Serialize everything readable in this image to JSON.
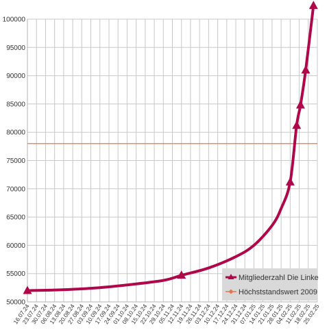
{
  "chart_data": {
    "type": "line",
    "title": "",
    "xlabel": "",
    "ylabel": "",
    "ylim": [
      50000,
      100000
    ],
    "y_ticks": [
      50000,
      55000,
      60000,
      65000,
      70000,
      75000,
      80000,
      85000,
      90000,
      95000,
      100000
    ],
    "x_tick_labels": [
      "16.07.24",
      "23.07.24",
      "30.07.24",
      "06.08.24",
      "13.08.24",
      "20.08.24",
      "27.08.24",
      "03.09.24",
      "10.09.24",
      "17.09.24",
      "24.09.24",
      "01.10.24",
      "08.10.24",
      "15.10.24",
      "22.10.24",
      "29.10.24",
      "05.11.24",
      "12.11.24",
      "19.11.24",
      "26.11.24",
      "03.12.24",
      "10.12.24",
      "17.12.24",
      "24.12.24",
      "31.12.24",
      "07.01.25",
      "14.01.25",
      "21.01.25",
      "28.01.25",
      "04.02.25",
      "11.02.25",
      "18.02.25",
      "25.02.25"
    ],
    "grid": true,
    "legend_position": "bottom-right",
    "series": [
      {
        "name": "Mitgliederzahl Die Linke",
        "color": "#b0074a",
        "marker": "triangle",
        "points": [
          {
            "x": "16.07.24",
            "y": 52000
          },
          {
            "x": "12.11.24",
            "y": 54700
          },
          {
            "x": "04.02.25",
            "y": 71200
          },
          {
            "x": "09.02.25",
            "y": 81200
          },
          {
            "x": "12.02.25",
            "y": 84800
          },
          {
            "x": "16.02.25",
            "y": 91000
          },
          {
            "x": "22.02.25",
            "y": 102400
          }
        ],
        "curve": [
          {
            "x": "16.07.24",
            "y": 52000
          },
          {
            "x": "06.08.24",
            "y": 52100
          },
          {
            "x": "03.09.24",
            "y": 52400
          },
          {
            "x": "01.10.24",
            "y": 53000
          },
          {
            "x": "29.10.24",
            "y": 53800
          },
          {
            "x": "12.11.24",
            "y": 54700
          },
          {
            "x": "03.12.24",
            "y": 56000
          },
          {
            "x": "24.12.24",
            "y": 58000
          },
          {
            "x": "07.01.25",
            "y": 60000
          },
          {
            "x": "21.01.25",
            "y": 63500
          },
          {
            "x": "28.01.25",
            "y": 66500
          },
          {
            "x": "04.02.25",
            "y": 71200
          },
          {
            "x": "09.02.25",
            "y": 81200
          },
          {
            "x": "12.02.25",
            "y": 84800
          },
          {
            "x": "16.02.25",
            "y": 91000
          },
          {
            "x": "22.02.25",
            "y": 102400
          }
        ]
      },
      {
        "name": "Höchststandswert 2009",
        "color": "#e8744b",
        "marker": "diamond",
        "values_constant": 78000
      }
    ]
  }
}
